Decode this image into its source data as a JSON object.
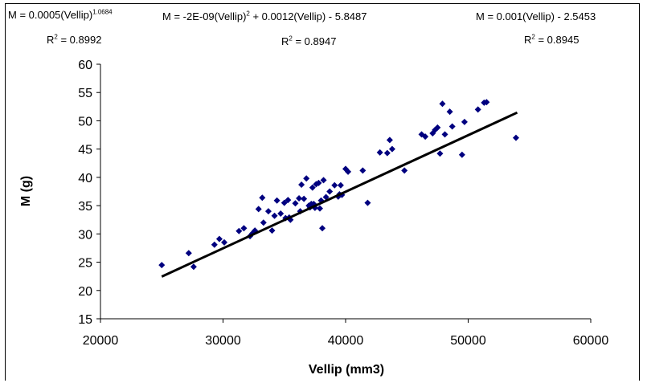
{
  "equations": [
    {
      "prefix": "M = 0.0005(Vellip)",
      "sup": "1.0684",
      "suffix": "",
      "r2": "0.8992"
    },
    {
      "prefix": "M = -2E-09(Vellip)",
      "sup": "2",
      "suffix": " + 0.0012(Vellip) - 5.8487",
      "r2": "0.8947"
    },
    {
      "prefix": "M = 0.001(Vellip) - 2.5453",
      "sup": "",
      "suffix": "",
      "r2": "0.8945"
    }
  ],
  "r2_label": "R",
  "r2_sup": "2",
  "r2_eq": " = ",
  "chart_data": {
    "type": "scatter",
    "xlabel": "Vellip (mm3)",
    "ylabel": "M (g)",
    "xlim": [
      20000,
      60000
    ],
    "ylim": [
      15,
      60
    ],
    "xticks": [
      "20000",
      "30000",
      "40000",
      "50000",
      "60000"
    ],
    "yticks": [
      "15",
      "20",
      "25",
      "30",
      "35",
      "40",
      "45",
      "50",
      "55",
      "60"
    ],
    "grid": false,
    "marker_color": "#00007f",
    "trendline": {
      "type": "linear",
      "slope": 0.001,
      "intercept": -2.5453,
      "x_range": [
        25000,
        54000
      ],
      "color": "#000000"
    },
    "points": [
      [
        25000,
        24.5
      ],
      [
        27200,
        26.6
      ],
      [
        27600,
        24.2
      ],
      [
        29300,
        28.1
      ],
      [
        29700,
        29.1
      ],
      [
        30100,
        28.5
      ],
      [
        31300,
        30.5
      ],
      [
        31700,
        31.0
      ],
      [
        32200,
        29.6
      ],
      [
        32400,
        30.1
      ],
      [
        32600,
        30.6
      ],
      [
        32900,
        34.4
      ],
      [
        33200,
        36.4
      ],
      [
        33300,
        32.0
      ],
      [
        33700,
        34.0
      ],
      [
        34000,
        30.6
      ],
      [
        34200,
        33.2
      ],
      [
        34400,
        35.9
      ],
      [
        34700,
        33.6
      ],
      [
        35000,
        35.5
      ],
      [
        35100,
        32.8
      ],
      [
        35300,
        36.0
      ],
      [
        35400,
        32.9
      ],
      [
        35500,
        32.5
      ],
      [
        35900,
        35.4
      ],
      [
        36200,
        36.3
      ],
      [
        36300,
        34.0
      ],
      [
        36400,
        38.7
      ],
      [
        36600,
        36.2
      ],
      [
        36800,
        39.8
      ],
      [
        37000,
        35.0
      ],
      [
        37100,
        34.7
      ],
      [
        37200,
        35.3
      ],
      [
        37300,
        38.2
      ],
      [
        37400,
        35.3
      ],
      [
        37500,
        34.6
      ],
      [
        37600,
        38.8
      ],
      [
        37800,
        39.0
      ],
      [
        37900,
        34.5
      ],
      [
        38000,
        35.9
      ],
      [
        38100,
        31.0
      ],
      [
        38200,
        39.5
      ],
      [
        38400,
        36.5
      ],
      [
        38700,
        37.5
      ],
      [
        39100,
        38.6
      ],
      [
        39400,
        36.6
      ],
      [
        39500,
        37.0
      ],
      [
        39600,
        38.6
      ],
      [
        39700,
        36.9
      ],
      [
        40000,
        41.5
      ],
      [
        40200,
        41.0
      ],
      [
        41400,
        41.2
      ],
      [
        41800,
        35.5
      ],
      [
        42800,
        44.4
      ],
      [
        43400,
        44.3
      ],
      [
        43600,
        46.6
      ],
      [
        43800,
        45.0
      ],
      [
        44800,
        41.2
      ],
      [
        46200,
        47.6
      ],
      [
        46500,
        47.2
      ],
      [
        47100,
        47.8
      ],
      [
        47300,
        48.4
      ],
      [
        47500,
        48.8
      ],
      [
        47700,
        44.2
      ],
      [
        47900,
        53.0
      ],
      [
        48100,
        47.6
      ],
      [
        48500,
        51.6
      ],
      [
        48700,
        49.0
      ],
      [
        49500,
        44.0
      ],
      [
        49700,
        49.8
      ],
      [
        50800,
        52.0
      ],
      [
        51300,
        53.2
      ],
      [
        51500,
        53.3
      ],
      [
        53900,
        47.0
      ]
    ]
  }
}
